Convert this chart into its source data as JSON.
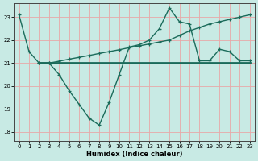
{
  "title": "",
  "xlabel": "Humidex (Indice chaleur)",
  "ylabel": "",
  "bg_color": "#c8eae4",
  "grid_color": "#e8a8a8",
  "line_color": "#1a6b5a",
  "xlim": [
    -0.5,
    23.5
  ],
  "ylim": [
    17.6,
    23.6
  ],
  "yticks": [
    18,
    19,
    20,
    21,
    22,
    23
  ],
  "xticks": [
    0,
    1,
    2,
    3,
    4,
    5,
    6,
    7,
    8,
    9,
    10,
    11,
    12,
    13,
    14,
    15,
    16,
    17,
    18,
    19,
    20,
    21,
    22,
    23
  ],
  "line1_x": [
    0,
    1,
    2,
    3,
    4,
    5,
    6,
    7,
    8,
    9,
    10,
    11,
    12,
    13,
    14,
    15,
    16,
    17,
    18,
    19,
    20,
    21,
    22,
    23
  ],
  "line1_y": [
    23.1,
    21.5,
    21.0,
    21.0,
    20.5,
    19.8,
    19.2,
    18.6,
    18.3,
    19.3,
    20.5,
    21.7,
    21.8,
    22.0,
    22.5,
    23.4,
    22.8,
    22.7,
    21.1,
    21.1,
    21.6,
    21.5,
    21.1,
    21.1
  ],
  "line2_x": [
    2,
    3,
    4,
    5,
    6,
    7,
    8,
    9,
    10,
    11,
    12,
    13,
    14,
    15,
    16,
    17,
    18,
    19,
    20,
    21,
    22,
    23
  ],
  "line2_y": [
    21.0,
    21.0,
    21.08,
    21.17,
    21.25,
    21.33,
    21.42,
    21.5,
    21.58,
    21.67,
    21.75,
    21.83,
    21.92,
    22.0,
    22.2,
    22.4,
    22.55,
    22.7,
    22.8,
    22.9,
    23.0,
    23.1
  ],
  "line3_x": [
    2,
    3,
    10,
    18,
    19,
    20,
    21,
    22,
    23
  ],
  "line3_y": [
    21.0,
    21.0,
    21.0,
    21.0,
    21.0,
    21.0,
    21.0,
    21.0,
    21.0
  ]
}
